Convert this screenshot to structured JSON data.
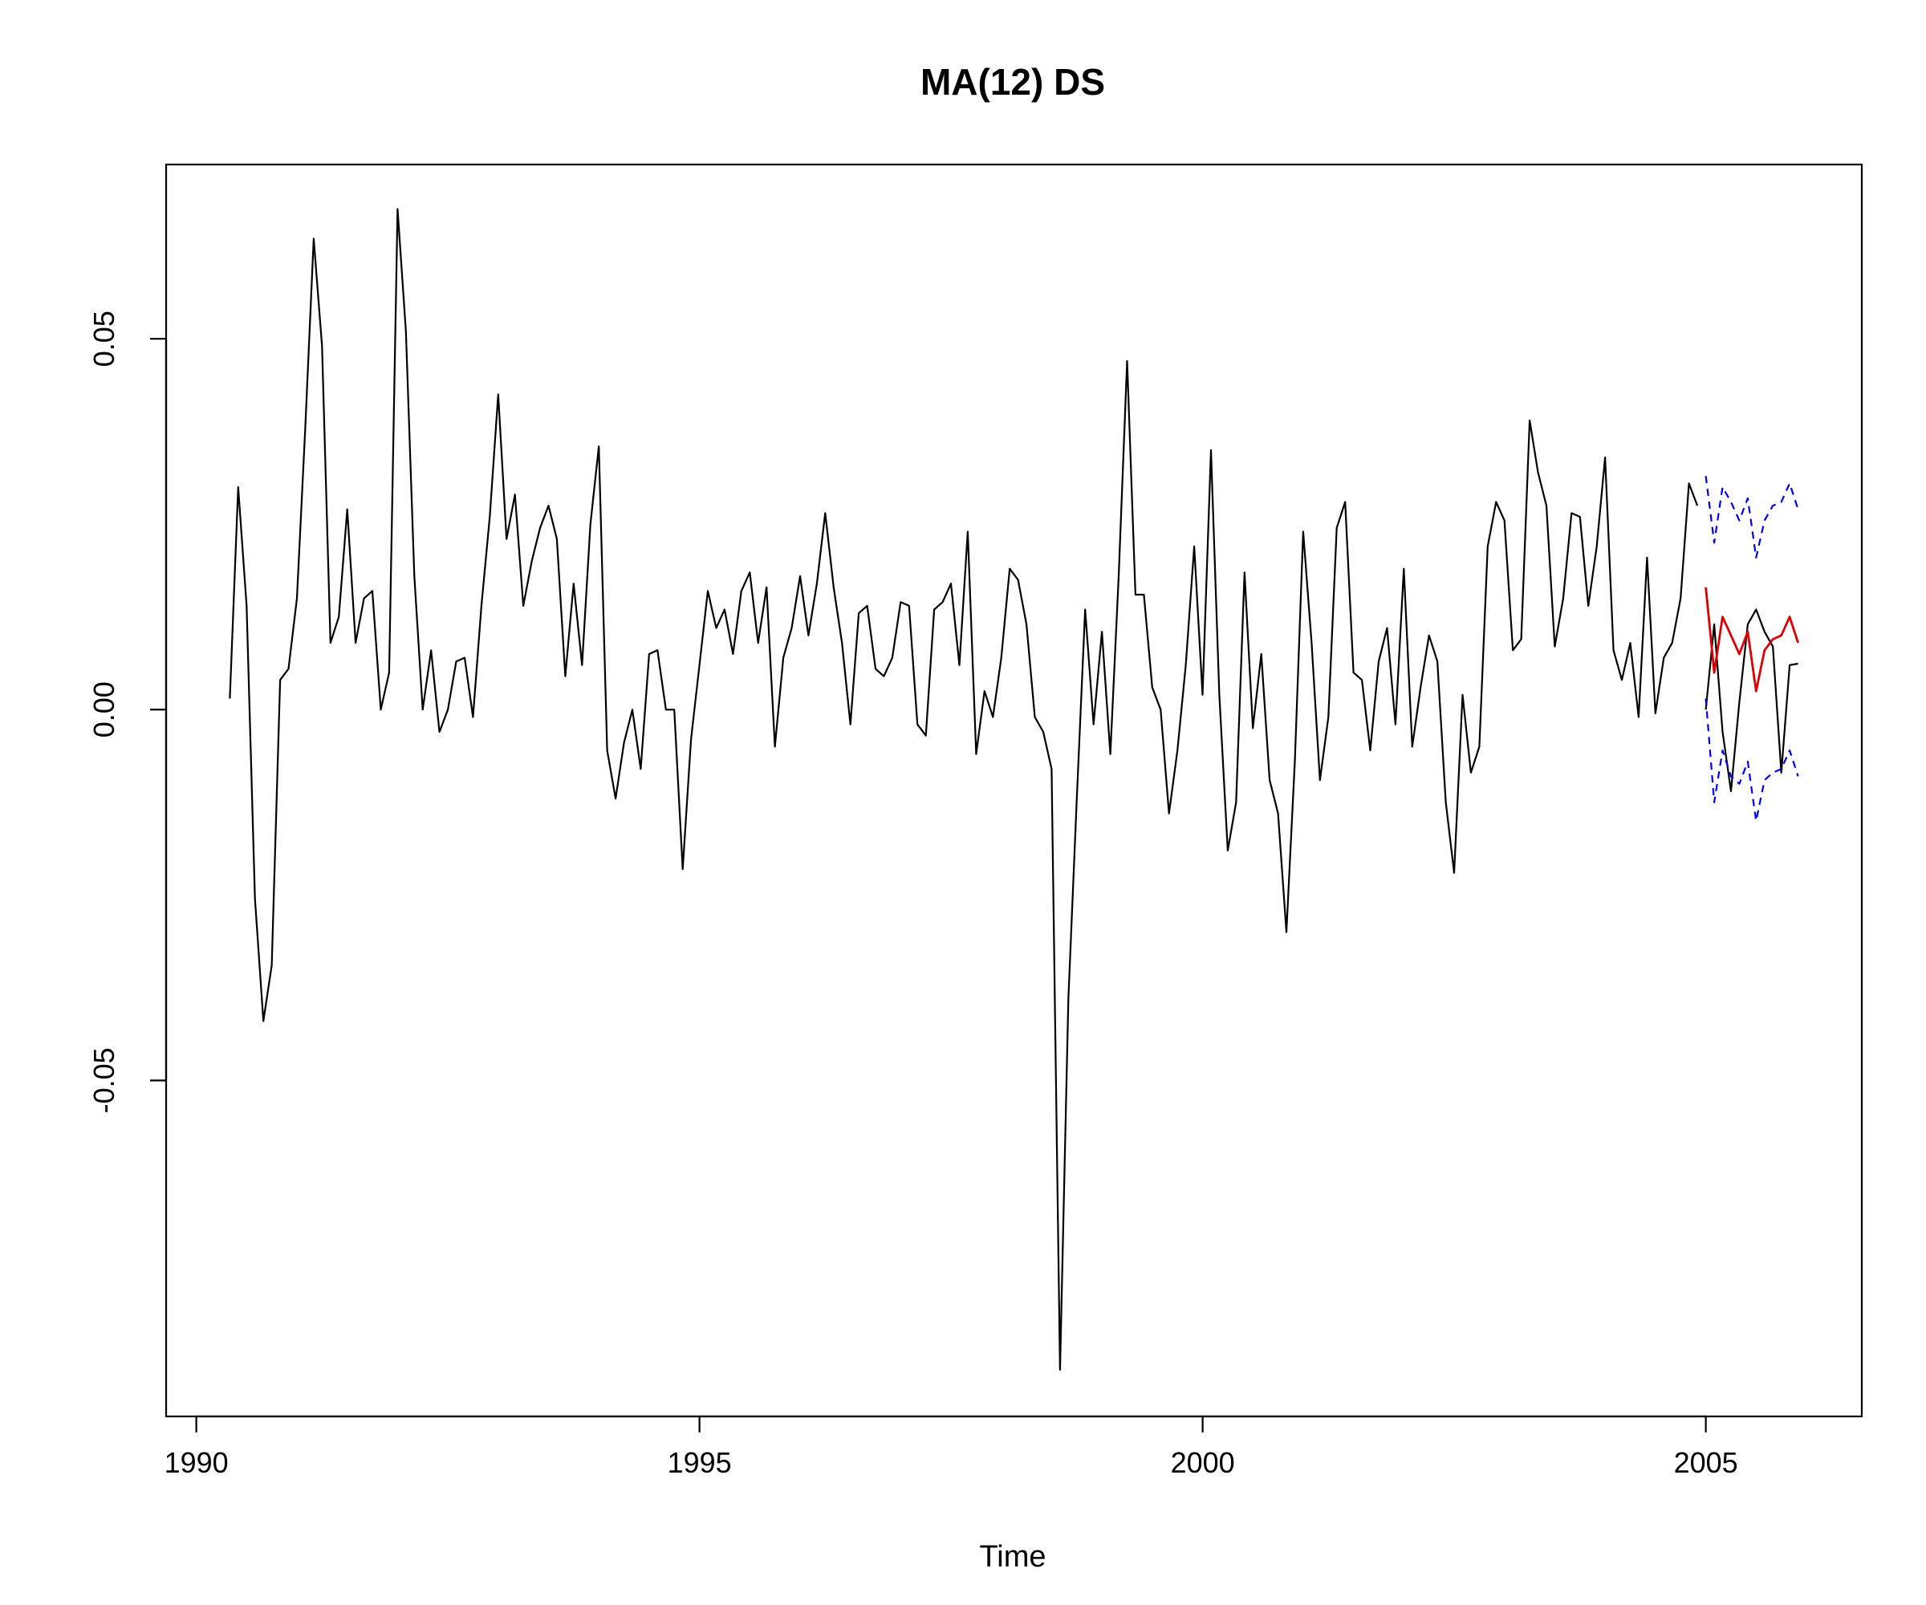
{
  "chart_data": {
    "type": "line",
    "title": "MA(12) DS",
    "xlabel": "Time",
    "ylabel": "",
    "xlim": [
      1989.7,
      2006.55
    ],
    "ylim": [
      -0.0953,
      0.0735
    ],
    "x_ticks": [
      1990,
      1995,
      2000,
      2005
    ],
    "x_tick_labels": [
      "1990",
      "1995",
      "2000",
      "2005"
    ],
    "y_ticks": [
      -0.05,
      0.0,
      0.05
    ],
    "y_tick_labels": [
      "-0.05",
      "0.00",
      "0.05"
    ],
    "grid": false,
    "legend": "none",
    "colors": {
      "observed": "#000000",
      "forecast": "#dd0000",
      "bounds": "#0000ee"
    },
    "series": [
      {
        "key": "observed",
        "color": "#000000",
        "dash": false,
        "x_start": 1990.333,
        "x_step": 0.08333,
        "values": [
          0.0015,
          0.03,
          0.014,
          -0.0255,
          -0.042,
          -0.0345,
          0.004,
          0.0055,
          0.015,
          0.038,
          0.0635,
          0.049,
          0.009,
          0.0125,
          0.027,
          0.009,
          0.015,
          0.016,
          0.0,
          0.005,
          0.0675,
          0.051,
          0.018,
          0.0,
          0.008,
          -0.003,
          0.0,
          0.0065,
          0.007,
          -0.001,
          0.014,
          0.026,
          0.0425,
          0.023,
          0.029,
          0.014,
          0.02,
          0.0245,
          0.0275,
          0.023,
          0.0045,
          0.017,
          0.006,
          0.025,
          0.0355,
          -0.0055,
          -0.012,
          -0.0045,
          0.0,
          -0.008,
          0.0075,
          0.008,
          0.0,
          0.0,
          -0.0215,
          -0.004,
          0.006,
          0.016,
          0.011,
          0.0135,
          0.0075,
          0.016,
          0.0185,
          0.009,
          0.0165,
          -0.005,
          0.007,
          0.011,
          0.018,
          0.01,
          0.017,
          0.0265,
          0.0165,
          0.009,
          -0.002,
          0.013,
          0.014,
          0.0055,
          0.0045,
          0.007,
          0.0145,
          0.014,
          -0.002,
          -0.0035,
          0.0135,
          0.0145,
          0.017,
          0.006,
          0.024,
          -0.006,
          0.0025,
          -0.001,
          0.007,
          0.019,
          0.0175,
          0.0115,
          -0.001,
          -0.003,
          -0.008,
          -0.089,
          -0.039,
          -0.012,
          0.0135,
          -0.002,
          0.0105,
          -0.006,
          0.018,
          0.047,
          0.0155,
          0.0155,
          0.003,
          0.0,
          -0.014,
          -0.0055,
          0.006,
          0.022,
          0.002,
          0.035,
          0.002,
          -0.019,
          -0.0125,
          0.0185,
          -0.0025,
          0.0075,
          -0.0095,
          -0.014,
          -0.03,
          -0.007,
          0.024,
          0.009,
          -0.0095,
          -0.001,
          0.0245,
          0.028,
          0.005,
          0.004,
          -0.0055,
          0.0065,
          0.011,
          -0.002,
          0.019,
          -0.005,
          0.003,
          0.01,
          0.0065,
          -0.0125,
          -0.022,
          0.002,
          -0.0085,
          -0.005,
          0.022,
          0.028,
          0.0255,
          0.008,
          0.0095,
          0.039,
          0.032,
          0.0275,
          0.0085,
          0.015,
          0.0265,
          0.026,
          0.014,
          0.022,
          0.034,
          0.008,
          0.004,
          0.009,
          -0.001,
          0.0205,
          -0.0005,
          0.007,
          0.009,
          0.015,
          0.0305,
          0.0275
        ]
      },
      {
        "key": "observed_holdout",
        "color": "#000000",
        "dash": false,
        "x_start": 2005.0,
        "x_step": 0.08333,
        "values": [
          0.0,
          0.0115,
          -0.003,
          -0.011,
          0.001,
          0.0115,
          0.0135,
          0.0105,
          0.0085,
          -0.0085,
          0.006,
          0.0062
        ]
      },
      {
        "key": "forecast",
        "color": "#dd0000",
        "dash": false,
        "x_start": 2005.0,
        "x_step": 0.08333,
        "values": [
          0.0165,
          0.005,
          0.0125,
          0.01,
          0.0075,
          0.0105,
          0.0025,
          0.008,
          0.0095,
          0.01,
          0.0125,
          0.009
        ]
      },
      {
        "key": "upper_bound",
        "color": "#0000ee",
        "dash": true,
        "x_start": 2005.0,
        "x_step": 0.08333,
        "values": [
          0.0315,
          0.0225,
          0.03,
          0.028,
          0.0255,
          0.0285,
          0.0205,
          0.0255,
          0.0275,
          0.028,
          0.0305,
          0.027
        ]
      },
      {
        "key": "lower_bound",
        "color": "#0000ee",
        "dash": true,
        "x_start": 2005.0,
        "x_step": 0.08333,
        "values": [
          0.0015,
          -0.0125,
          -0.0055,
          -0.009,
          -0.01,
          -0.007,
          -0.015,
          -0.0095,
          -0.0085,
          -0.008,
          -0.0055,
          -0.009
        ]
      }
    ]
  }
}
